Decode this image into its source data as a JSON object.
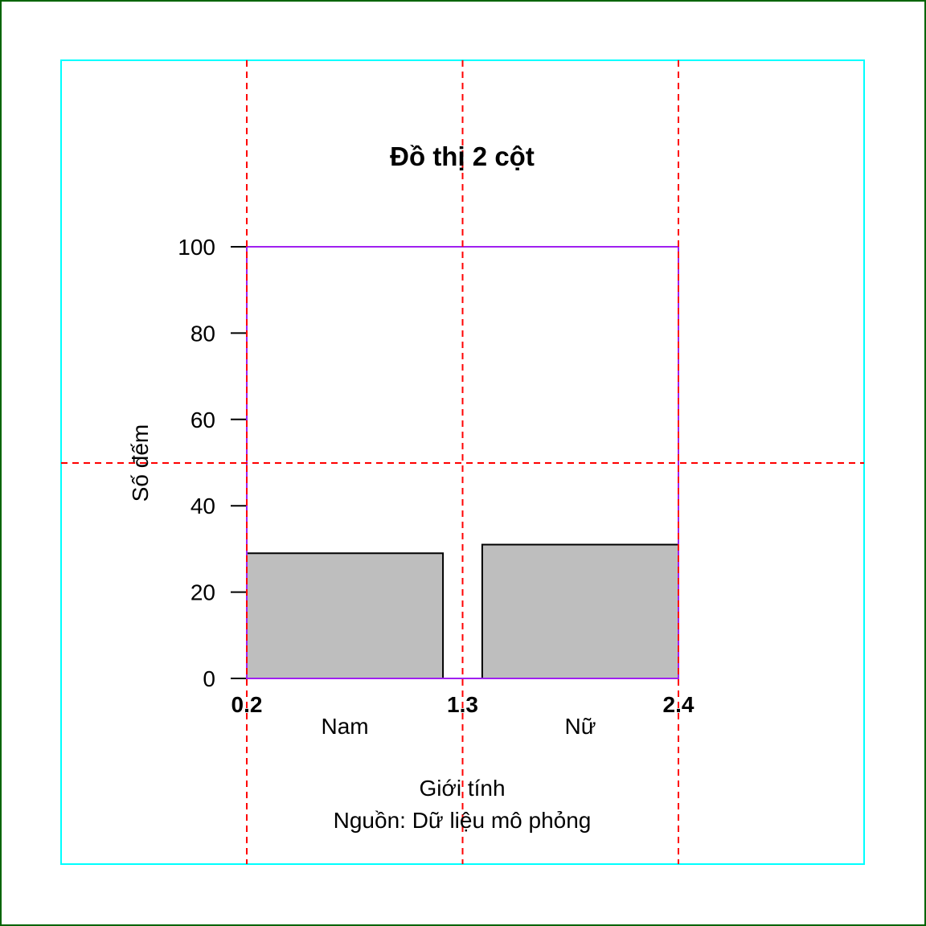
{
  "chart_data": {
    "type": "bar",
    "title": "Đồ thị 2 cột",
    "xlabel": "Giới tính",
    "ylabel": "Số đếm",
    "caption": "Nguồn: Dữ liệu mô phỏng",
    "categories": [
      "Nam",
      "Nữ"
    ],
    "values": [
      29,
      31
    ],
    "ylim": [
      0,
      100
    ],
    "yticks": [
      "0",
      "20",
      "40",
      "60",
      "80",
      "100"
    ],
    "ytick_values": [
      0,
      20,
      40,
      60,
      80,
      100
    ],
    "x_annotations": [
      "0.2",
      "1.3",
      "2.4"
    ],
    "x_annotation_values": [
      0.2,
      1.3,
      2.4
    ],
    "xlim": [
      0.2,
      2.4
    ],
    "bar_fill": "#bebebe",
    "bar_edge": "#000000",
    "grid": false,
    "reference_lines": {
      "vertical_x": [
        0.2,
        1.3,
        2.4
      ],
      "horizontal_y": [
        50
      ],
      "color": "#ff0000",
      "style": "dashed"
    },
    "plot_region_color": "#a020f0",
    "figure_region_color": "#00ffff",
    "outer_border_color": "#006400"
  }
}
